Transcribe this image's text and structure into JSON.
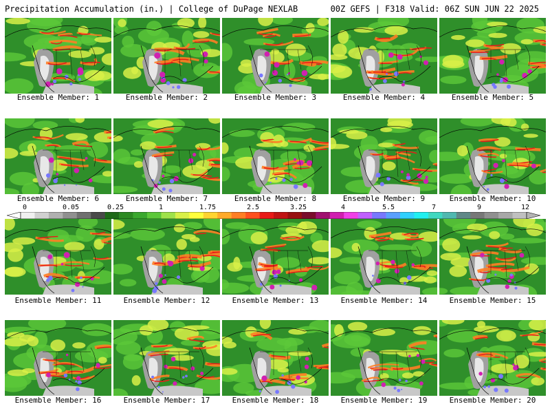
{
  "header": {
    "title_left": "Precipitation Accumulation (in.) | College of DuPage NEXLAB",
    "title_right": "00Z GEFS | F318 Valid: 06Z SUN JUN 22 2025"
  },
  "member_label_prefix": "Ensemble Member: ",
  "members": [
    1,
    2,
    3,
    4,
    5,
    6,
    7,
    8,
    9,
    10,
    11,
    12,
    13,
    14,
    15,
    16,
    17,
    18,
    19,
    20
  ],
  "colorbar": {
    "tick_labels": [
      "0",
      "0.05",
      "0.25",
      "1",
      "1.75",
      "2.5",
      "3.25",
      "4",
      "5.5",
      "7",
      "9",
      "12"
    ],
    "colors": [
      "#f0f0f0",
      "#d0d0d0",
      "#b0b0b0",
      "#909090",
      "#707070",
      "#4a4a4a",
      "#1e6a18",
      "#2c8a22",
      "#3aa82e",
      "#5cc83a",
      "#9ee24a",
      "#d8f048",
      "#ffff3c",
      "#ffd430",
      "#ffaa2a",
      "#ff7e24",
      "#ff501e",
      "#e81a18",
      "#c01414",
      "#981010",
      "#7a0c2c",
      "#a01070",
      "#d020b0",
      "#f040e8",
      "#c060ff",
      "#7878ff",
      "#5aa0ff",
      "#30d0ff",
      "#20f0f0",
      "#40d8c0",
      "#50b8b0",
      "#608888",
      "#787878",
      "#909090",
      "#a8a8a8",
      "#c0c0c0"
    ],
    "arrow_color": "#b4b4b4"
  }
}
